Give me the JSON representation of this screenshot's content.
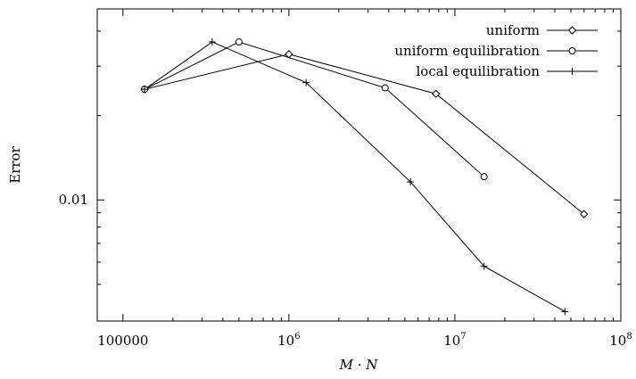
{
  "chart_data": {
    "type": "line",
    "title": "",
    "xlabel": "M · N",
    "ylabel": "Error",
    "xscale": "log",
    "yscale": "log",
    "xlim": [
      70000,
      100000000
    ],
    "ylim": [
      0.0037,
      0.048
    ],
    "grid": false,
    "legend_position": "top-right",
    "x_ticks": [
      {
        "value": 100000,
        "label": "100000"
      },
      {
        "value": 1000000,
        "label": "10",
        "exp": "6"
      },
      {
        "value": 10000000,
        "label": "10",
        "exp": "7"
      },
      {
        "value": 100000000,
        "label": "10",
        "exp": "8"
      }
    ],
    "y_ticks": [
      {
        "value": 0.01,
        "label": "0.01"
      }
    ],
    "y_minor_ticks": [
      0.005,
      0.006,
      0.007,
      0.008,
      0.009,
      0.02,
      0.03,
      0.04
    ],
    "series": [
      {
        "name": "uniform",
        "marker": "diamond",
        "points": [
          [
            135000,
            0.0248
          ],
          [
            1000000,
            0.0331
          ],
          [
            7700000,
            0.0239
          ],
          [
            60000000,
            0.0089
          ]
        ]
      },
      {
        "name": "uniform equilibration",
        "marker": "circle",
        "points": [
          [
            135000,
            0.0248
          ],
          [
            500000,
            0.0366
          ],
          [
            3800000,
            0.0251
          ],
          [
            15000000,
            0.0121
          ]
        ]
      },
      {
        "name": "local equilibration",
        "marker": "plus",
        "points": [
          [
            135000,
            0.0248
          ],
          [
            345000,
            0.0366
          ],
          [
            1270000,
            0.0262
          ],
          [
            5400000,
            0.0116
          ],
          [
            15000000,
            0.0058
          ],
          [
            46000000,
            0.004
          ]
        ]
      }
    ]
  }
}
